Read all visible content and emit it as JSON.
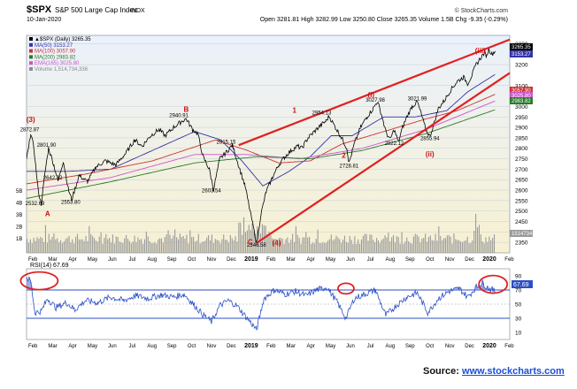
{
  "header": {
    "symbol": "$SPX",
    "name": "S&P 500 Large Cap Index",
    "exchange": "INDX",
    "brand": "© StockCharts.com",
    "date": "10-Jan-2020",
    "stats": "Open 3281.81  High 3282.99  Low 3250.80  Close 3265.35  Volume 1.5B  Chg -9.35 (-0.29%)",
    "legend": [
      {
        "label": "▲$SPX (Daily) 3265.35",
        "color": "#000000"
      },
      {
        "label": "MA(50) 3153.27",
        "color": "#3333aa"
      },
      {
        "label": "MA(100) 3057.90",
        "color": "#cc3333"
      },
      {
        "label": "MA(200) 2983.82",
        "color": "#2a7a2a"
      },
      {
        "label": "EMA(165) 3025.80",
        "color": "#cc55cc"
      },
      {
        "label": "Volume 1,514,734,336",
        "color": "#8c8c8c"
      }
    ]
  },
  "colors": {
    "price_bg_top": "#eaf1fb",
    "price_bg_bottom": "#f7f1d2",
    "price": "#000000",
    "ma50": "#3333aa",
    "ma100": "#cc3333",
    "ma200": "#2a7a2a",
    "ema165": "#cc55cc",
    "volume": "#9a9a9a",
    "wedge": "#e02020",
    "rsi": "#2b4fc6",
    "annotation": "#d01010"
  },
  "chart_data": [
    {
      "type": "line",
      "panel": "price",
      "ylim": [
        2300,
        3340
      ],
      "y_ticks": [
        "3300",
        "3200",
        "3100",
        "3000",
        "2950",
        "2900",
        "2850",
        "2800",
        "2750",
        "2700",
        "2650",
        "2600",
        "2550",
        "2500",
        "2450",
        "2400",
        "2350"
      ],
      "right_labels": [
        "3265.35",
        "3153.27",
        "3057.90",
        "3025.80",
        "2983.82",
        "1514734"
      ],
      "volume_ticks": [
        "5B",
        "4B",
        "3B",
        "2B",
        "1B"
      ],
      "x_labels": [
        "Feb",
        "Mar",
        "Apr",
        "May",
        "Jun",
        "Jul",
        "Aug",
        "Sep",
        "Oct",
        "Nov",
        "Dec",
        "2019",
        "Feb",
        "Mar",
        "Apr",
        "May",
        "Jun",
        "Jul",
        "Aug",
        "Sep",
        "Oct",
        "Nov",
        "Dec",
        "2020",
        "Feb"
      ],
      "price_pivots": [
        {
          "d": 0,
          "v": 2750
        },
        {
          "d": 2,
          "v": 2800
        },
        {
          "d": 4,
          "v": 2873
        },
        {
          "d": 7,
          "v": 2800
        },
        {
          "d": 11,
          "v": 2600
        },
        {
          "d": 14,
          "v": 2533
        },
        {
          "d": 18,
          "v": 2700
        },
        {
          "d": 21,
          "v": 2801
        },
        {
          "d": 26,
          "v": 2720
        },
        {
          "d": 30,
          "v": 2642
        },
        {
          "d": 35,
          "v": 2740
        },
        {
          "d": 40,
          "v": 2600
        },
        {
          "d": 43,
          "v": 2554
        },
        {
          "d": 50,
          "v": 2670
        },
        {
          "d": 58,
          "v": 2640
        },
        {
          "d": 66,
          "v": 2710
        },
        {
          "d": 75,
          "v": 2740
        },
        {
          "d": 85,
          "v": 2720
        },
        {
          "d": 95,
          "v": 2780
        },
        {
          "d": 103,
          "v": 2840
        },
        {
          "d": 110,
          "v": 2810
        },
        {
          "d": 118,
          "v": 2860
        },
        {
          "d": 126,
          "v": 2890
        },
        {
          "d": 132,
          "v": 2860
        },
        {
          "d": 140,
          "v": 2900
        },
        {
          "d": 148,
          "v": 2930
        },
        {
          "d": 152,
          "v": 2941
        },
        {
          "d": 158,
          "v": 2890
        },
        {
          "d": 163,
          "v": 2870
        },
        {
          "d": 168,
          "v": 2760
        },
        {
          "d": 174,
          "v": 2700
        },
        {
          "d": 178,
          "v": 2603
        },
        {
          "d": 184,
          "v": 2750
        },
        {
          "d": 190,
          "v": 2780
        },
        {
          "d": 196,
          "v": 2815
        },
        {
          "d": 203,
          "v": 2700
        },
        {
          "d": 208,
          "v": 2620
        },
        {
          "d": 212,
          "v": 2520
        },
        {
          "d": 216,
          "v": 2420
        },
        {
          "d": 219,
          "v": 2347
        },
        {
          "d": 223,
          "v": 2480
        },
        {
          "d": 228,
          "v": 2590
        },
        {
          "d": 234,
          "v": 2660
        },
        {
          "d": 240,
          "v": 2720
        },
        {
          "d": 246,
          "v": 2760
        },
        {
          "d": 252,
          "v": 2790
        },
        {
          "d": 258,
          "v": 2810
        },
        {
          "d": 262,
          "v": 2800
        },
        {
          "d": 268,
          "v": 2850
        },
        {
          "d": 274,
          "v": 2880
        },
        {
          "d": 280,
          "v": 2910
        },
        {
          "d": 285,
          "v": 2930
        },
        {
          "d": 288,
          "v": 2954
        },
        {
          "d": 294,
          "v": 2900
        },
        {
          "d": 300,
          "v": 2850
        },
        {
          "d": 305,
          "v": 2800
        },
        {
          "d": 307,
          "v": 2729
        },
        {
          "d": 312,
          "v": 2820
        },
        {
          "d": 318,
          "v": 2900
        },
        {
          "d": 324,
          "v": 2950
        },
        {
          "d": 330,
          "v": 2990
        },
        {
          "d": 334,
          "v": 3025
        },
        {
          "d": 338,
          "v": 2960
        },
        {
          "d": 342,
          "v": 2880
        },
        {
          "d": 346,
          "v": 2840
        },
        {
          "d": 350,
          "v": 2890
        },
        {
          "d": 354,
          "v": 2830
        },
        {
          "d": 358,
          "v": 2900
        },
        {
          "d": 362,
          "v": 2950
        },
        {
          "d": 367,
          "v": 3000
        },
        {
          "d": 372,
          "v": 3022
        },
        {
          "d": 376,
          "v": 2960
        },
        {
          "d": 380,
          "v": 2890
        },
        {
          "d": 384,
          "v": 2856
        },
        {
          "d": 388,
          "v": 2920
        },
        {
          "d": 392,
          "v": 2990
        },
        {
          "d": 398,
          "v": 3030
        },
        {
          "d": 404,
          "v": 3080
        },
        {
          "d": 410,
          "v": 3120
        },
        {
          "d": 416,
          "v": 3140
        },
        {
          "d": 420,
          "v": 3110
        },
        {
          "d": 424,
          "v": 3150
        },
        {
          "d": 428,
          "v": 3200
        },
        {
          "d": 432,
          "v": 3230
        },
        {
          "d": 436,
          "v": 3258
        },
        {
          "d": 438,
          "v": 3240
        },
        {
          "d": 440,
          "v": 3275
        },
        {
          "d": 443,
          "v": 3250
        },
        {
          "d": 446,
          "v": 3265
        }
      ],
      "overlays": [
        {
          "name": "MA(50)",
          "color_key": "ma50",
          "points": [
            {
              "d": 0,
              "v": 2690
            },
            {
              "d": 40,
              "v": 2690
            },
            {
              "d": 80,
              "v": 2700
            },
            {
              "d": 120,
              "v": 2790
            },
            {
              "d": 160,
              "v": 2880
            },
            {
              "d": 185,
              "v": 2840
            },
            {
              "d": 205,
              "v": 2740
            },
            {
              "d": 225,
              "v": 2620
            },
            {
              "d": 250,
              "v": 2690
            },
            {
              "d": 270,
              "v": 2760
            },
            {
              "d": 290,
              "v": 2860
            },
            {
              "d": 310,
              "v": 2860
            },
            {
              "d": 340,
              "v": 2950
            },
            {
              "d": 370,
              "v": 2950
            },
            {
              "d": 400,
              "v": 2980
            },
            {
              "d": 420,
              "v": 3070
            },
            {
              "d": 446,
              "v": 3153
            }
          ]
        },
        {
          "name": "MA(100)",
          "color_key": "ma100",
          "points": [
            {
              "d": 0,
              "v": 2630
            },
            {
              "d": 60,
              "v": 2680
            },
            {
              "d": 120,
              "v": 2740
            },
            {
              "d": 180,
              "v": 2840
            },
            {
              "d": 210,
              "v": 2790
            },
            {
              "d": 240,
              "v": 2730
            },
            {
              "d": 270,
              "v": 2740
            },
            {
              "d": 300,
              "v": 2820
            },
            {
              "d": 340,
              "v": 2880
            },
            {
              "d": 380,
              "v": 2940
            },
            {
              "d": 410,
              "v": 2980
            },
            {
              "d": 446,
              "v": 3058
            }
          ]
        },
        {
          "name": "EMA(165)",
          "color_key": "ema165",
          "points": [
            {
              "d": 0,
              "v": 2600
            },
            {
              "d": 80,
              "v": 2660
            },
            {
              "d": 160,
              "v": 2770
            },
            {
              "d": 210,
              "v": 2770
            },
            {
              "d": 260,
              "v": 2750
            },
            {
              "d": 320,
              "v": 2800
            },
            {
              "d": 380,
              "v": 2890
            },
            {
              "d": 446,
              "v": 3026
            }
          ]
        },
        {
          "name": "MA(200)",
          "color_key": "ma200",
          "points": [
            {
              "d": 0,
              "v": 2560
            },
            {
              "d": 80,
              "v": 2640
            },
            {
              "d": 160,
              "v": 2730
            },
            {
              "d": 220,
              "v": 2760
            },
            {
              "d": 270,
              "v": 2750
            },
            {
              "d": 320,
              "v": 2790
            },
            {
              "d": 380,
              "v": 2870
            },
            {
              "d": 446,
              "v": 2984
            }
          ]
        }
      ],
      "wedge": {
        "upper": [
          {
            "d": 202,
            "v": 2815
          },
          {
            "d": 460,
            "v": 3320
          }
        ],
        "lower": [
          {
            "d": 219,
            "v": 2347
          },
          {
            "d": 460,
            "v": 3160
          }
        ]
      },
      "price_labels": [
        {
          "text": "2872.87",
          "d": 3,
          "v": 2882
        },
        {
          "text": "2801.90",
          "d": 19,
          "v": 2808
        },
        {
          "text": "2532.69",
          "d": 8,
          "v": 2528
        },
        {
          "text": "2642.32",
          "d": 25,
          "v": 2650
        },
        {
          "text": "2553.80",
          "d": 42,
          "v": 2535
        },
        {
          "text": "2940.91",
          "d": 145,
          "v": 2948
        },
        {
          "text": "2815.15",
          "d": 190,
          "v": 2823
        },
        {
          "text": "2603.54",
          "d": 176,
          "v": 2590
        },
        {
          "text": "2346.58",
          "d": 219,
          "v": 2330
        },
        {
          "text": "2954.13",
          "d": 281,
          "v": 2962
        },
        {
          "text": "2728.81",
          "d": 307,
          "v": 2708
        },
        {
          "text": "3027.98",
          "d": 332,
          "v": 3023
        },
        {
          "text": "2822.12",
          "d": 350,
          "v": 2815
        },
        {
          "text": "3021.99",
          "d": 372,
          "v": 3030
        },
        {
          "text": "2855.94",
          "d": 384,
          "v": 2838
        }
      ],
      "wave_labels": [
        {
          "text": "(3)",
          "d": 4,
          "v": 2925
        },
        {
          "text": "A",
          "d": 20,
          "v": 2475
        },
        {
          "text": "B",
          "d": 152,
          "v": 2975
        },
        {
          "text": "C",
          "d": 213,
          "v": 2340
        },
        {
          "text": "(4)",
          "d": 238,
          "v": 2335
        },
        {
          "text": "1",
          "d": 255,
          "v": 2970
        },
        {
          "text": "2",
          "d": 302,
          "v": 2755
        },
        {
          "text": "(i)",
          "d": 328,
          "v": 3045
        },
        {
          "text": "(ii)",
          "d": 384,
          "v": 2760
        },
        {
          "text": "(iii)",
          "d": 432,
          "v": 3255
        }
      ]
    },
    {
      "type": "line",
      "panel": "rsi",
      "name": "RSI(14) 67.69",
      "ylim": [
        0,
        100
      ],
      "y_ticks": [
        "90",
        "70",
        "50",
        "30",
        "10"
      ],
      "levels": [
        70,
        50,
        30
      ],
      "last_value_label": "67.69",
      "x_labels": [
        "Feb",
        "Mar",
        "Apr",
        "May",
        "Jun",
        "Jul",
        "Aug",
        "Sep",
        "Oct",
        "Nov",
        "Dec",
        "2019",
        "Feb",
        "Mar",
        "Apr",
        "May",
        "Jun",
        "Jul",
        "Aug",
        "Sep",
        "Oct",
        "Nov",
        "Dec",
        "2020",
        "Feb"
      ],
      "rsi_points": [
        {
          "d": 0,
          "v": 88
        },
        {
          "d": 4,
          "v": 82
        },
        {
          "d": 8,
          "v": 38
        },
        {
          "d": 14,
          "v": 40
        },
        {
          "d": 20,
          "v": 58
        },
        {
          "d": 28,
          "v": 45
        },
        {
          "d": 38,
          "v": 52
        },
        {
          "d": 46,
          "v": 42
        },
        {
          "d": 56,
          "v": 55
        },
        {
          "d": 68,
          "v": 52
        },
        {
          "d": 80,
          "v": 60
        },
        {
          "d": 92,
          "v": 55
        },
        {
          "d": 104,
          "v": 62
        },
        {
          "d": 116,
          "v": 58
        },
        {
          "d": 128,
          "v": 63
        },
        {
          "d": 140,
          "v": 60
        },
        {
          "d": 150,
          "v": 64
        },
        {
          "d": 160,
          "v": 48
        },
        {
          "d": 168,
          "v": 35
        },
        {
          "d": 176,
          "v": 25
        },
        {
          "d": 184,
          "v": 48
        },
        {
          "d": 192,
          "v": 55
        },
        {
          "d": 200,
          "v": 48
        },
        {
          "d": 210,
          "v": 30
        },
        {
          "d": 219,
          "v": 14
        },
        {
          "d": 226,
          "v": 58
        },
        {
          "d": 236,
          "v": 70
        },
        {
          "d": 246,
          "v": 64
        },
        {
          "d": 256,
          "v": 68
        },
        {
          "d": 266,
          "v": 62
        },
        {
          "d": 276,
          "v": 70
        },
        {
          "d": 286,
          "v": 74
        },
        {
          "d": 296,
          "v": 52
        },
        {
          "d": 304,
          "v": 30
        },
        {
          "d": 312,
          "v": 58
        },
        {
          "d": 322,
          "v": 64
        },
        {
          "d": 332,
          "v": 70
        },
        {
          "d": 342,
          "v": 34
        },
        {
          "d": 352,
          "v": 48
        },
        {
          "d": 362,
          "v": 60
        },
        {
          "d": 372,
          "v": 66
        },
        {
          "d": 382,
          "v": 38
        },
        {
          "d": 392,
          "v": 58
        },
        {
          "d": 402,
          "v": 68
        },
        {
          "d": 412,
          "v": 72
        },
        {
          "d": 420,
          "v": 60
        },
        {
          "d": 428,
          "v": 74
        },
        {
          "d": 434,
          "v": 80
        },
        {
          "d": 440,
          "v": 72
        },
        {
          "d": 446,
          "v": 68
        }
      ]
    }
  ],
  "source": {
    "label": "Source:",
    "link": "www.stockcharts.com"
  }
}
